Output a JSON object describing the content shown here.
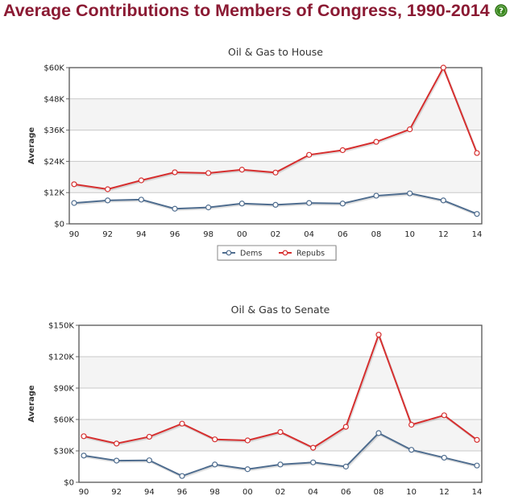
{
  "page": {
    "title": "Average Contributions to Members of Congress, 1990-2014",
    "help_icon": "question-circle-icon"
  },
  "colors": {
    "title": "#8b1a33",
    "dems": "#4f6d8f",
    "repubs": "#d62f2f",
    "band": "#f4f4f4",
    "grid": "#c8c8c8",
    "help_icon": "#3a8a1e"
  },
  "legend": {
    "dems_label": "Dems",
    "repubs_label": "Repubs"
  },
  "chart_data": [
    {
      "type": "line",
      "title": "Oil & Gas to House",
      "xlabel": "",
      "ylabel": "Average",
      "categories": [
        "90",
        "92",
        "94",
        "96",
        "98",
        "00",
        "02",
        "04",
        "06",
        "08",
        "10",
        "12",
        "14"
      ],
      "ylim": [
        0,
        60000
      ],
      "yticks": [
        0,
        12000,
        24000,
        36000,
        48000,
        60000
      ],
      "ytick_labels": [
        "$0",
        "$12K",
        "$24K",
        "$36K",
        "$48K",
        "$60K"
      ],
      "grid": true,
      "legend": "bottom-center",
      "series": [
        {
          "name": "Dems",
          "color": "#4f6d8f",
          "values": [
            8000,
            9000,
            9300,
            5800,
            6300,
            7800,
            7300,
            8000,
            7800,
            10800,
            11700,
            9000,
            3800
          ]
        },
        {
          "name": "Repubs",
          "color": "#d62f2f",
          "values": [
            15200,
            13300,
            16700,
            19800,
            19500,
            20800,
            19700,
            26500,
            28300,
            31500,
            36300,
            60000,
            27200
          ]
        }
      ]
    },
    {
      "type": "line",
      "title": "Oil & Gas to Senate",
      "xlabel": "",
      "ylabel": "Average",
      "categories": [
        "90",
        "92",
        "94",
        "96",
        "98",
        "00",
        "02",
        "04",
        "06",
        "08",
        "10",
        "12",
        "14"
      ],
      "ylim": [
        0,
        150000
      ],
      "yticks": [
        0,
        30000,
        60000,
        90000,
        120000,
        150000
      ],
      "ytick_labels": [
        "$0",
        "$30K",
        "$60K",
        "$90K",
        "$120K",
        "$150K"
      ],
      "grid": true,
      "legend": "none",
      "series": [
        {
          "name": "Dems",
          "color": "#4f6d8f",
          "values": [
            25500,
            20700,
            21000,
            6000,
            17000,
            12500,
            17000,
            19000,
            15000,
            47000,
            31000,
            23500,
            16000
          ]
        },
        {
          "name": "Repubs",
          "color": "#d62f2f",
          "values": [
            44000,
            37000,
            43500,
            56000,
            41000,
            40000,
            48000,
            33000,
            53000,
            141000,
            55000,
            64000,
            40500
          ]
        }
      ]
    }
  ]
}
